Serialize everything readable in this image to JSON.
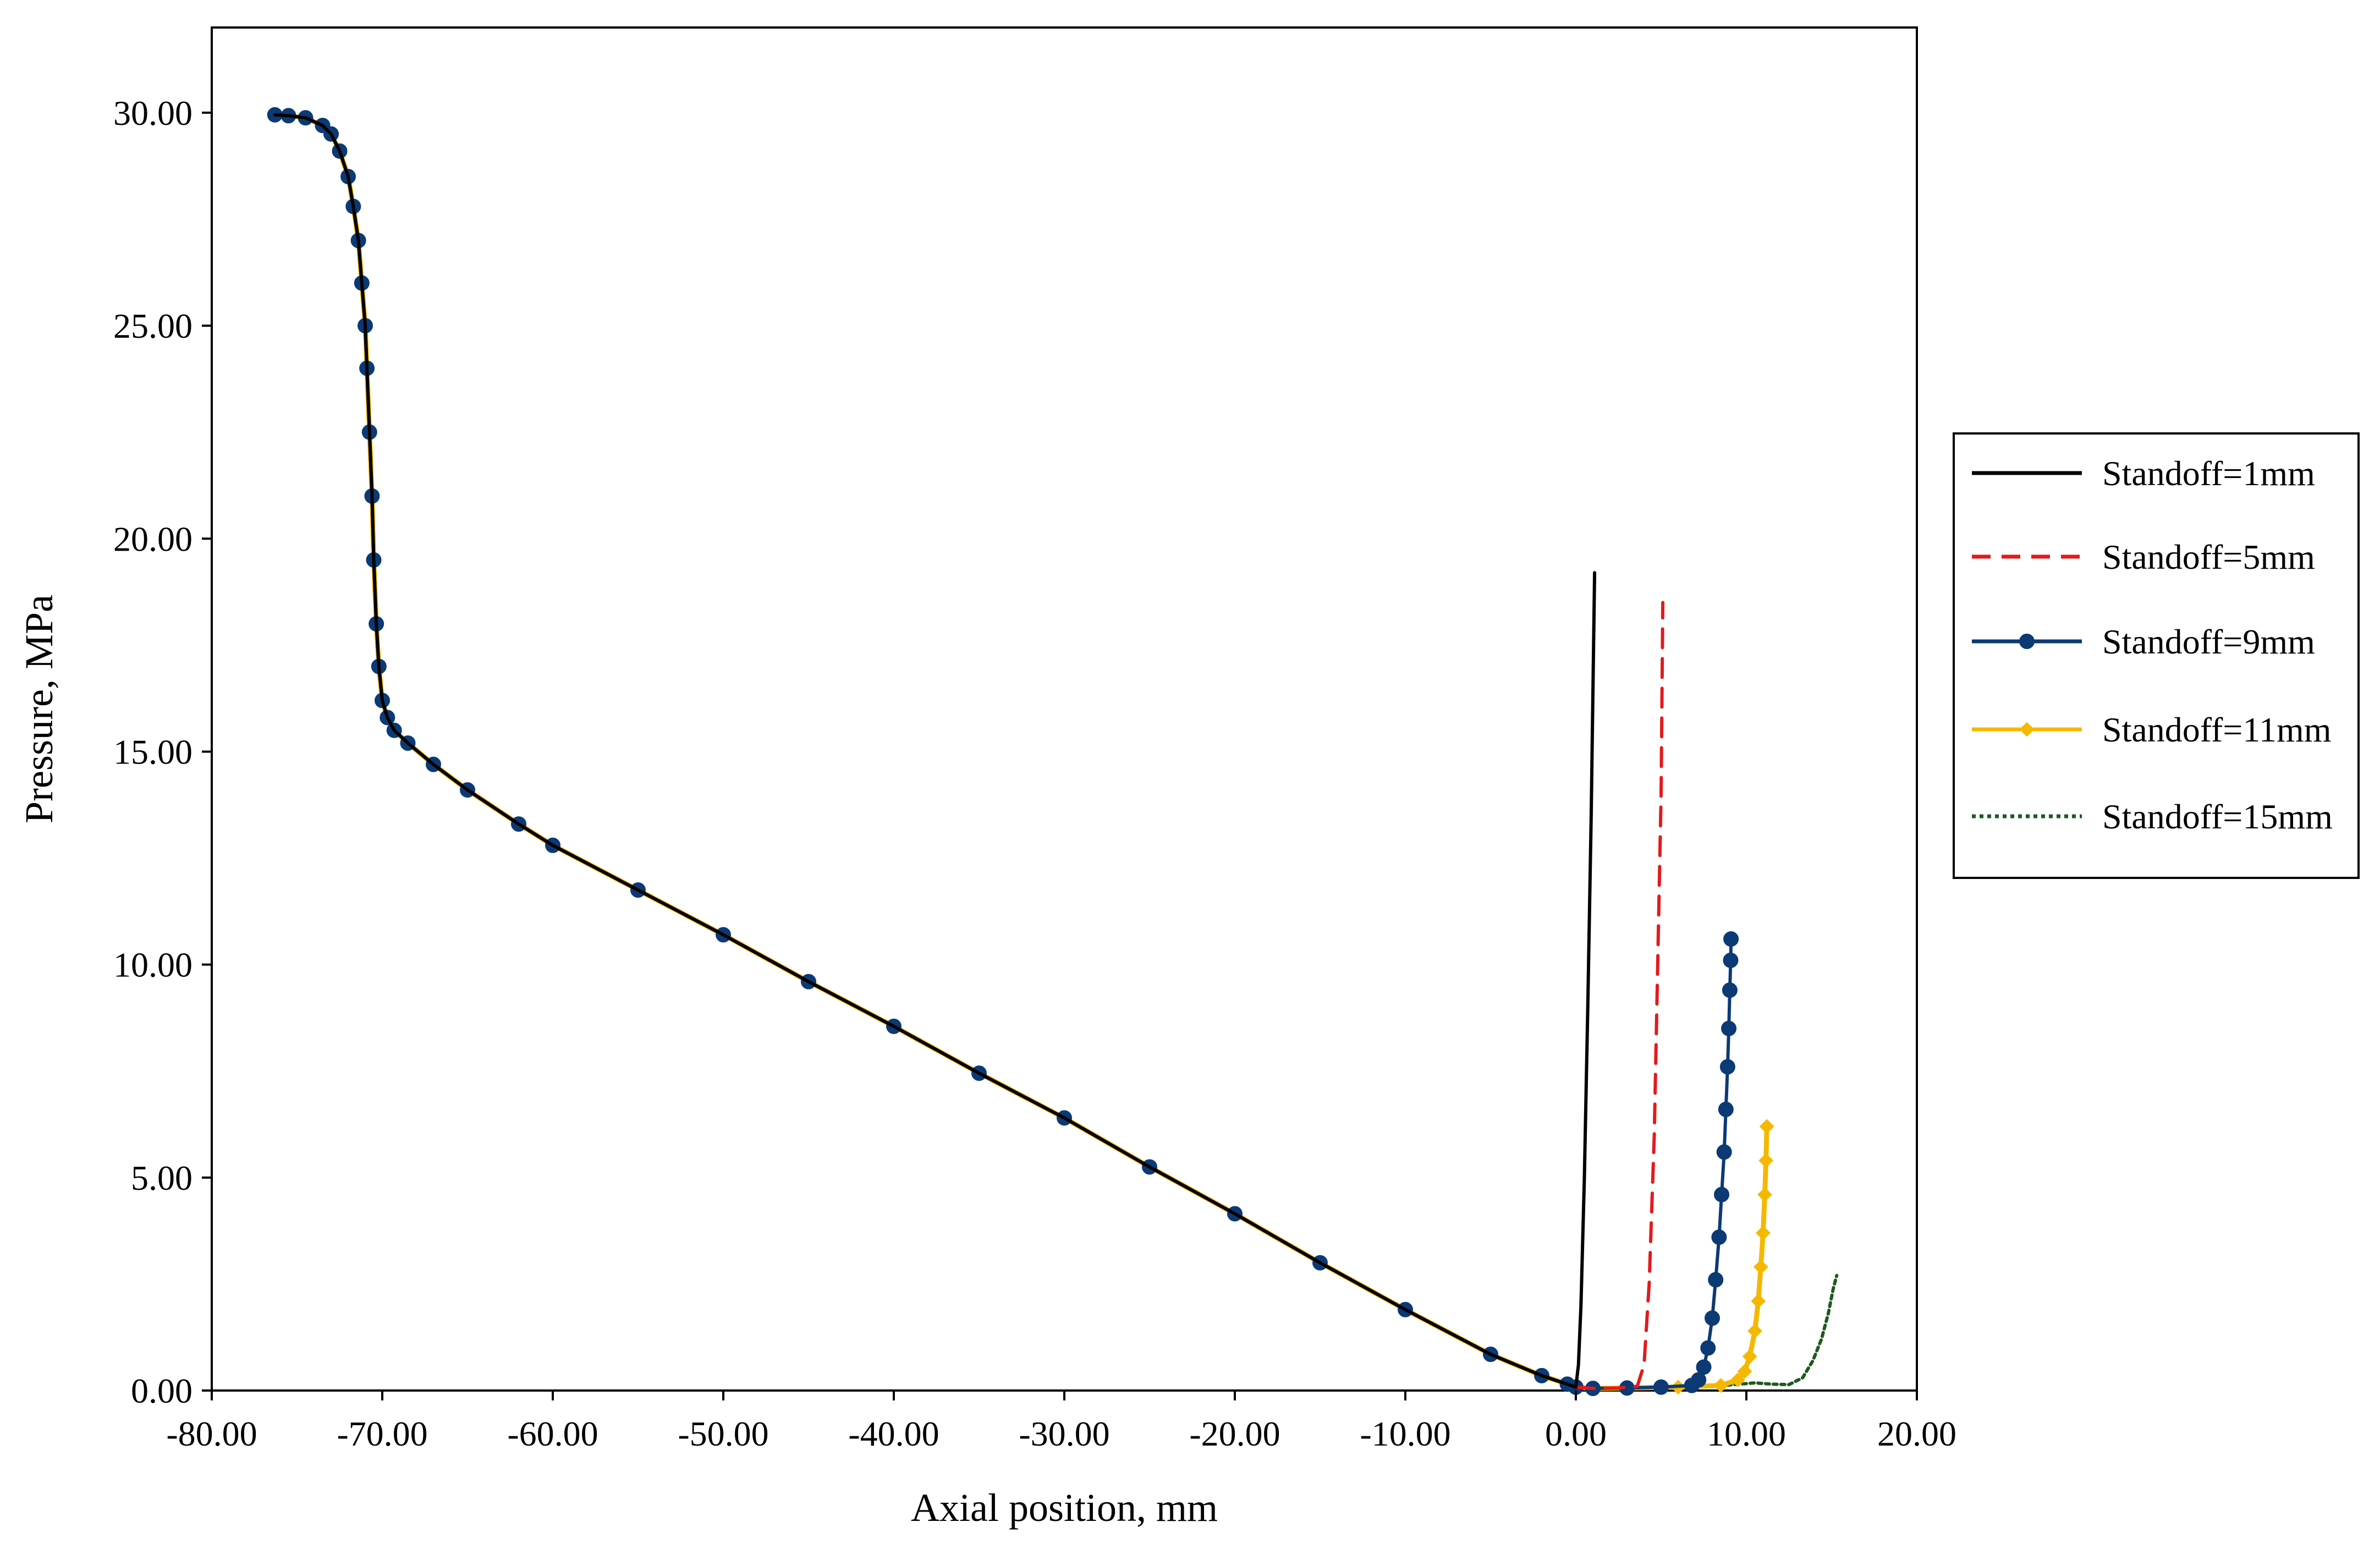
{
  "chart_data": {
    "type": "line",
    "title": "",
    "xlabel": "Axial position, mm",
    "ylabel": "Pressure, MPa",
    "xlim": [
      -80,
      20
    ],
    "ylim": [
      0,
      32
    ],
    "x_ticks": [
      "-80.00",
      "-70.00",
      "-60.00",
      "-50.00",
      "-40.00",
      "-30.00",
      "-20.00",
      "-10.00",
      "0.00",
      "10.00",
      "20.00"
    ],
    "y_ticks": [
      "0.00",
      "5.00",
      "10.00",
      "15.00",
      "20.00",
      "25.00",
      "30.00"
    ],
    "grid": false,
    "legend_position": "right",
    "shared_upstream": [
      [
        -76.3,
        29.95
      ],
      [
        -75.5,
        29.93
      ],
      [
        -74.5,
        29.88
      ],
      [
        -73.5,
        29.7
      ],
      [
        -73.0,
        29.5
      ],
      [
        -72.5,
        29.1
      ],
      [
        -72.0,
        28.5
      ],
      [
        -71.7,
        27.8
      ],
      [
        -71.4,
        27.0
      ],
      [
        -71.2,
        26.0
      ],
      [
        -71.0,
        25.0
      ],
      [
        -70.9,
        24.0
      ],
      [
        -70.75,
        22.5
      ],
      [
        -70.6,
        21.0
      ],
      [
        -70.5,
        19.5
      ],
      [
        -70.35,
        18.0
      ],
      [
        -70.2,
        17.0
      ],
      [
        -70.0,
        16.2
      ],
      [
        -69.7,
        15.8
      ],
      [
        -69.3,
        15.5
      ],
      [
        -68.5,
        15.2
      ],
      [
        -67.0,
        14.7
      ],
      [
        -65.0,
        14.1
      ],
      [
        -62.0,
        13.3
      ],
      [
        -60.0,
        12.8
      ],
      [
        -55.0,
        11.75
      ],
      [
        -50.0,
        10.7
      ],
      [
        -45.0,
        9.6
      ],
      [
        -40.0,
        8.55
      ],
      [
        -35.0,
        7.45
      ],
      [
        -30.0,
        6.4
      ],
      [
        -25.0,
        5.25
      ],
      [
        -20.0,
        4.15
      ],
      [
        -15.0,
        3.0
      ],
      [
        -10.0,
        1.9
      ],
      [
        -5.0,
        0.85
      ],
      [
        -2.0,
        0.35
      ],
      [
        -0.5,
        0.15
      ],
      [
        0.0,
        0.08
      ]
    ],
    "series": [
      {
        "name": "Standoff=1mm",
        "color": "#000000",
        "style": "solid",
        "marker": "none",
        "values": [
          [
            0.0,
            0.08
          ],
          [
            0.15,
            0.6
          ],
          [
            0.3,
            2.0
          ],
          [
            0.5,
            5.0
          ],
          [
            0.7,
            9.0
          ],
          [
            0.9,
            13.5
          ],
          [
            1.1,
            19.2
          ]
        ]
      },
      {
        "name": "Standoff=5mm",
        "color": "#e31a1c",
        "style": "dashed",
        "marker": "none",
        "values": [
          [
            0.0,
            0.08
          ],
          [
            1.0,
            0.05
          ],
          [
            2.5,
            0.06
          ],
          [
            3.6,
            0.1
          ],
          [
            4.0,
            0.6
          ],
          [
            4.3,
            2.5
          ],
          [
            4.6,
            6.0
          ],
          [
            4.8,
            10.0
          ],
          [
            5.0,
            14.0
          ],
          [
            5.1,
            18.5
          ]
        ]
      },
      {
        "name": "Standoff=9mm",
        "color": "#0b3a75",
        "style": "solid",
        "marker": "circle",
        "values": [
          [
            0.0,
            0.08
          ],
          [
            1.0,
            0.05
          ],
          [
            3.0,
            0.06
          ],
          [
            5.0,
            0.08
          ],
          [
            6.8,
            0.12
          ],
          [
            7.2,
            0.25
          ],
          [
            7.5,
            0.55
          ],
          [
            7.75,
            1.0
          ],
          [
            8.0,
            1.7
          ],
          [
            8.2,
            2.6
          ],
          [
            8.4,
            3.6
          ],
          [
            8.55,
            4.6
          ],
          [
            8.7,
            5.6
          ],
          [
            8.8,
            6.6
          ],
          [
            8.9,
            7.6
          ],
          [
            8.97,
            8.5
          ],
          [
            9.03,
            9.4
          ],
          [
            9.08,
            10.1
          ],
          [
            9.1,
            10.6
          ]
        ]
      },
      {
        "name": "Standoff=11mm",
        "color": "#f5b800",
        "style": "solid",
        "marker": "diamond",
        "values": [
          [
            0.0,
            0.08
          ],
          [
            1.0,
            0.05
          ],
          [
            3.0,
            0.06
          ],
          [
            6.0,
            0.08
          ],
          [
            8.5,
            0.12
          ],
          [
            9.5,
            0.25
          ],
          [
            9.9,
            0.45
          ],
          [
            10.2,
            0.8
          ],
          [
            10.5,
            1.4
          ],
          [
            10.7,
            2.1
          ],
          [
            10.85,
            2.9
          ],
          [
            10.98,
            3.7
          ],
          [
            11.08,
            4.6
          ],
          [
            11.15,
            5.4
          ],
          [
            11.2,
            6.2
          ]
        ]
      },
      {
        "name": "Standoff=15mm",
        "color": "#1e5a1e",
        "style": "dotted",
        "marker": "none",
        "values": [
          [
            0.0,
            0.08
          ],
          [
            1.0,
            0.05
          ],
          [
            4.0,
            0.07
          ],
          [
            7.0,
            0.1
          ],
          [
            9.0,
            0.13
          ],
          [
            10.5,
            0.18
          ],
          [
            11.5,
            0.15
          ],
          [
            12.5,
            0.14
          ],
          [
            13.3,
            0.3
          ],
          [
            13.9,
            0.7
          ],
          [
            14.4,
            1.2
          ],
          [
            14.8,
            1.8
          ],
          [
            15.1,
            2.4
          ],
          [
            15.3,
            2.7
          ]
        ]
      }
    ]
  }
}
